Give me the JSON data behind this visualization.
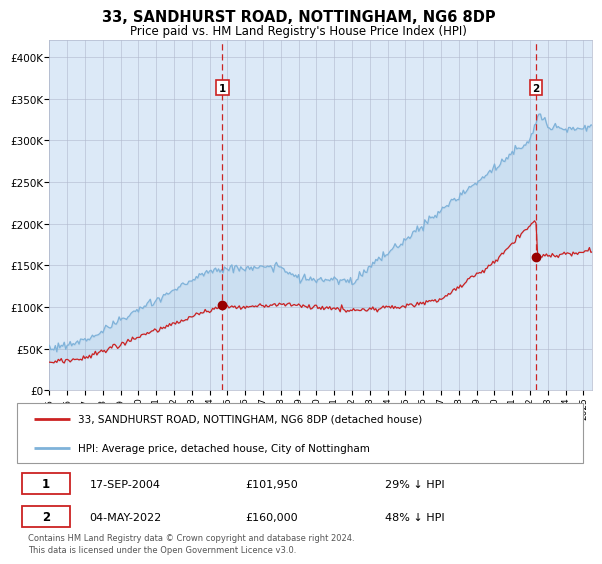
{
  "title": "33, SANDHURST ROAD, NOTTINGHAM, NG6 8DP",
  "subtitle": "Price paid vs. HM Land Registry's House Price Index (HPI)",
  "plot_bg_color": "#dce9f7",
  "red_line_label": "33, SANDHURST ROAD, NOTTINGHAM, NG6 8DP (detached house)",
  "blue_line_label": "HPI: Average price, detached house, City of Nottingham",
  "transaction1_date": "17-SEP-2004",
  "transaction1_price": 101950,
  "transaction1_pct": "29% ↓ HPI",
  "transaction1_x": 2004.72,
  "transaction1_y": 101950,
  "transaction2_date": "04-MAY-2022",
  "transaction2_price": 160000,
  "transaction2_pct": "48% ↓ HPI",
  "transaction2_x": 2022.34,
  "transaction2_y": 160000,
  "footer": "Contains HM Land Registry data © Crown copyright and database right 2024.\nThis data is licensed under the Open Government Licence v3.0.",
  "ylim": [
    0,
    420000
  ],
  "xlim_start": 1995.0,
  "xlim_end": 2025.5,
  "yticks": [
    0,
    50000,
    100000,
    150000,
    200000,
    250000,
    300000,
    350000,
    400000
  ],
  "ytick_labels": [
    "£0",
    "£50K",
    "£100K",
    "£150K",
    "£200K",
    "£250K",
    "£300K",
    "£350K",
    "£400K"
  ],
  "xtick_years": [
    1995,
    1996,
    1997,
    1998,
    1999,
    2000,
    2001,
    2002,
    2003,
    2004,
    2005,
    2006,
    2007,
    2008,
    2009,
    2010,
    2011,
    2012,
    2013,
    2014,
    2015,
    2016,
    2017,
    2018,
    2019,
    2020,
    2021,
    2022,
    2023,
    2024,
    2025
  ]
}
